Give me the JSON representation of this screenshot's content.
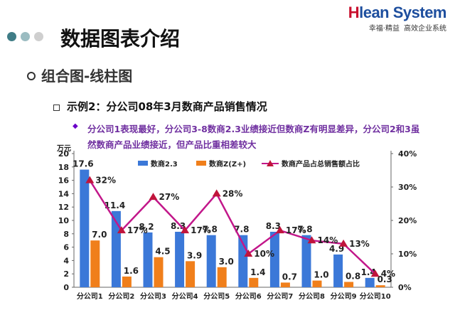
{
  "header": {
    "logo_h": "H",
    "logo_rest": "lean System",
    "tagline_left": "幸福·精益",
    "tagline_right": "高效企业系统",
    "dot_colors": [
      "#3f7c86",
      "#9bbcc1",
      "#cfcfcf"
    ]
  },
  "slide": {
    "title": "数据图表介绍",
    "subtitle": "组合图-线柱图",
    "example": "示例2：分公司08年3月数商产品销售情况",
    "description": "分公司1表现最好，分公司3-8数商2.3业绩接近但数商Z有明显差异，分公司2和3虽然数商产品业绩接近，但产品比重相差较大"
  },
  "chart_data": {
    "type": "bar",
    "categories": [
      "分公司1",
      "分公司2",
      "分公司3",
      "分公司4",
      "分公司5",
      "分公司6",
      "分公司7",
      "分公司8",
      "分公司9",
      "分公司10"
    ],
    "series": [
      {
        "name": "数商2.3",
        "type": "bar",
        "axis": "left",
        "color": "#3b78d8",
        "values": [
          17.6,
          11.4,
          8.2,
          8.3,
          7.8,
          7.8,
          8.3,
          7.8,
          4.9,
          1.4
        ]
      },
      {
        "name": "数商Z(Z+)",
        "type": "bar",
        "axis": "left",
        "color": "#f07f1b",
        "values": [
          7.0,
          1.6,
          4.5,
          3.9,
          3.0,
          1.4,
          0.7,
          1.0,
          0.8,
          0.3
        ]
      },
      {
        "name": "数商产品占总销售额占比",
        "type": "line",
        "axis": "right",
        "color": "#c2178a",
        "marker_color": "#c0143c",
        "values": [
          32,
          17,
          27,
          17,
          28,
          10,
          17,
          14,
          13,
          4
        ]
      }
    ],
    "bar_labels": [
      [
        "17.6",
        "11.4",
        "8.2",
        "8.3",
        "7.8",
        "7.8",
        "8.3",
        "7.8",
        "4.9",
        "1.4"
      ],
      [
        "7.0",
        "1.6",
        "4.5",
        "3.9",
        "3.0",
        "1.4",
        "0.7",
        "1.0",
        "0.8",
        "0.3"
      ]
    ],
    "line_labels": [
      "32%",
      "17%",
      "27%",
      "17%",
      "28%",
      "10%",
      "17%",
      "14%",
      "13%",
      "4%"
    ],
    "y_left": {
      "unit": "万元",
      "ticks": [
        "0",
        "2",
        "4",
        "6",
        "8",
        "10",
        "12",
        "14",
        "16",
        "18",
        "20"
      ],
      "min": 0,
      "max": 20
    },
    "y_right": {
      "ticks": [
        "0%",
        "10%",
        "20%",
        "30%",
        "40%"
      ],
      "min": 0,
      "max": 40
    },
    "legend_position": "top",
    "grid": false
  }
}
